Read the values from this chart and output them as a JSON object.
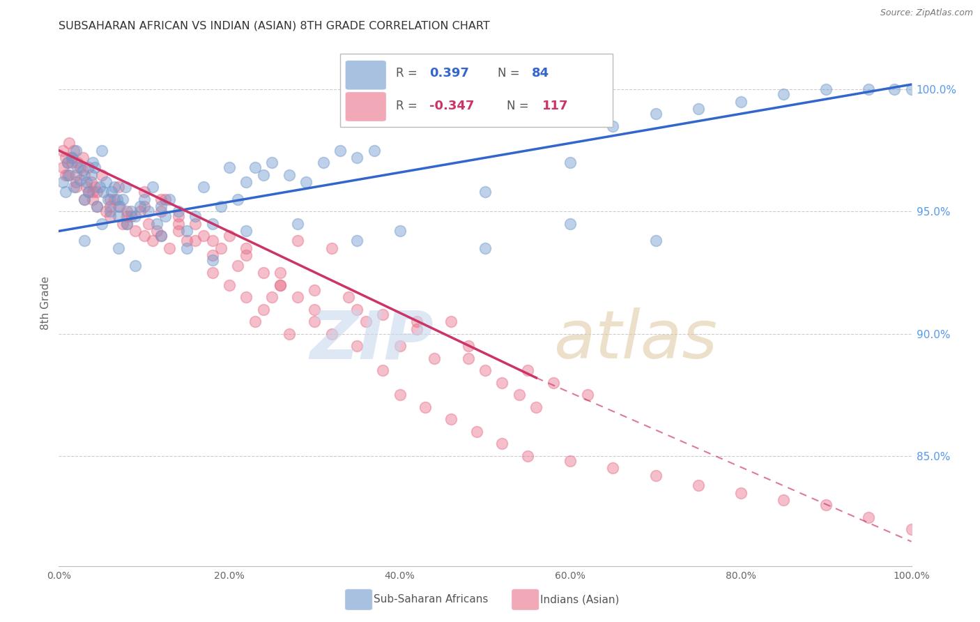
{
  "title": "SUBSAHARAN AFRICAN VS INDIAN (ASIAN) 8TH GRADE CORRELATION CHART",
  "source": "Source: ZipAtlas.com",
  "ylabel": "8th Grade",
  "legend_blue_r_val": "0.397",
  "legend_blue_n_val": "84",
  "legend_pink_r_val": "-0.347",
  "legend_pink_n_val": "117",
  "legend_label_blue": "Sub-Saharan Africans",
  "legend_label_pink": "Indians (Asian)",
  "right_yticks": [
    85.0,
    90.0,
    95.0,
    100.0
  ],
  "blue_color": "#7099CC",
  "pink_color": "#E8708A",
  "blue_line_color": "#3366CC",
  "pink_line_color": "#CC3366",
  "blue_scatter_x": [
    0.5,
    0.8,
    1.0,
    1.2,
    1.5,
    1.8,
    2.0,
    2.2,
    2.5,
    2.8,
    3.0,
    3.2,
    3.5,
    3.8,
    4.0,
    4.2,
    4.5,
    4.8,
    5.0,
    5.2,
    5.5,
    5.8,
    6.0,
    6.2,
    6.5,
    6.8,
    7.0,
    7.2,
    7.5,
    7.8,
    8.0,
    8.5,
    9.0,
    9.5,
    10.0,
    10.5,
    11.0,
    11.5,
    12.0,
    12.5,
    13.0,
    14.0,
    15.0,
    16.0,
    17.0,
    18.0,
    19.0,
    20.0,
    21.0,
    22.0,
    23.0,
    24.0,
    25.0,
    27.0,
    29.0,
    31.0,
    33.0,
    35.0,
    37.0,
    50.0,
    60.0,
    65.0,
    70.0,
    75.0,
    80.0,
    85.0,
    90.0,
    95.0,
    98.0,
    100.0,
    3.0,
    5.0,
    7.0,
    9.0,
    12.0,
    15.0,
    18.0,
    22.0,
    28.0,
    35.0,
    40.0,
    50.0,
    60.0,
    70.0
  ],
  "blue_scatter_y": [
    96.2,
    95.8,
    97.0,
    96.5,
    97.2,
    96.0,
    97.5,
    96.8,
    96.3,
    96.7,
    95.5,
    96.2,
    95.8,
    96.5,
    97.0,
    96.8,
    95.2,
    96.0,
    97.5,
    95.8,
    96.2,
    95.5,
    95.0,
    95.8,
    96.0,
    95.5,
    94.8,
    95.2,
    95.5,
    96.0,
    94.5,
    95.0,
    94.8,
    95.2,
    95.5,
    95.0,
    96.0,
    94.5,
    95.2,
    94.8,
    95.5,
    95.0,
    94.2,
    94.8,
    96.0,
    94.5,
    95.2,
    96.8,
    95.5,
    96.2,
    96.8,
    96.5,
    97.0,
    96.5,
    96.2,
    97.0,
    97.5,
    97.2,
    97.5,
    95.8,
    97.0,
    98.5,
    99.0,
    99.2,
    99.5,
    99.8,
    100.0,
    100.0,
    100.0,
    100.0,
    93.8,
    94.5,
    93.5,
    92.8,
    94.0,
    93.5,
    93.0,
    94.2,
    94.5,
    93.8,
    94.2,
    93.5,
    94.5,
    93.8
  ],
  "pink_scatter_x": [
    0.5,
    0.8,
    1.0,
    1.2,
    1.5,
    1.8,
    2.0,
    2.2,
    2.5,
    2.8,
    3.0,
    3.2,
    3.5,
    3.8,
    4.0,
    4.2,
    4.5,
    5.0,
    5.5,
    6.0,
    6.5,
    7.0,
    7.5,
    8.0,
    8.5,
    9.0,
    9.5,
    10.0,
    10.5,
    11.0,
    11.5,
    12.0,
    12.5,
    13.0,
    14.0,
    15.0,
    16.0,
    17.0,
    18.0,
    19.0,
    20.0,
    21.0,
    22.0,
    23.0,
    24.0,
    25.0,
    26.0,
    27.0,
    28.0,
    30.0,
    32.0,
    34.0,
    36.0,
    38.0,
    40.0,
    42.0,
    44.0,
    46.0,
    48.0,
    50.0,
    52.0,
    54.0,
    56.0,
    58.0,
    0.5,
    1.0,
    2.0,
    3.0,
    4.5,
    6.0,
    8.0,
    10.0,
    12.0,
    14.0,
    16.0,
    18.0,
    20.0,
    22.0,
    24.0,
    26.0,
    28.0,
    30.0,
    32.0,
    35.0,
    38.0,
    40.0,
    43.0,
    46.0,
    49.0,
    52.0,
    55.0,
    60.0,
    65.0,
    70.0,
    75.0,
    80.0,
    85.0,
    90.0,
    95.0,
    100.0,
    0.8,
    2.0,
    4.0,
    6.0,
    8.0,
    10.0,
    14.0,
    18.0,
    22.0,
    26.0,
    30.0,
    35.0,
    42.0,
    48.0,
    55.0,
    62.0,
    1.5,
    3.5,
    7.0,
    12.0
  ],
  "pink_scatter_y": [
    97.5,
    97.2,
    97.0,
    97.8,
    97.2,
    97.5,
    96.5,
    97.0,
    96.8,
    97.2,
    96.5,
    96.0,
    95.8,
    96.2,
    95.5,
    96.0,
    95.2,
    96.5,
    95.0,
    94.8,
    95.5,
    95.2,
    94.5,
    95.0,
    94.8,
    94.2,
    95.0,
    94.0,
    94.5,
    93.8,
    94.2,
    94.0,
    95.5,
    93.5,
    94.8,
    93.8,
    94.5,
    94.0,
    92.5,
    93.5,
    94.0,
    92.8,
    93.5,
    90.5,
    92.5,
    91.5,
    92.0,
    90.0,
    93.8,
    91.0,
    93.5,
    91.5,
    90.5,
    90.8,
    89.5,
    90.5,
    89.0,
    90.5,
    89.0,
    88.5,
    88.0,
    87.5,
    87.0,
    88.0,
    96.8,
    96.5,
    96.0,
    95.5,
    95.8,
    95.2,
    94.5,
    95.8,
    95.0,
    94.2,
    93.8,
    93.2,
    92.0,
    91.5,
    91.0,
    92.0,
    91.5,
    90.5,
    90.0,
    89.5,
    88.5,
    87.5,
    87.0,
    86.5,
    86.0,
    85.5,
    85.0,
    84.8,
    84.5,
    84.2,
    83.8,
    83.5,
    83.2,
    83.0,
    82.5,
    82.0,
    96.5,
    96.2,
    95.8,
    95.5,
    94.8,
    95.2,
    94.5,
    93.8,
    93.2,
    92.5,
    91.8,
    91.0,
    90.2,
    89.5,
    88.5,
    87.5,
    97.0,
    96.8,
    96.0,
    95.5
  ],
  "blue_line_x0": 0.0,
  "blue_line_x1": 100.0,
  "blue_line_y0": 94.2,
  "blue_line_y1": 100.2,
  "pink_line_x0": 0.0,
  "pink_line_x1": 56.0,
  "pink_line_y0": 97.5,
  "pink_line_y1": 88.2,
  "pink_dash_x0": 56.0,
  "pink_dash_x1": 100.0,
  "pink_dash_y0": 88.2,
  "pink_dash_y1": 81.5,
  "ymin": 80.5,
  "ymax": 102.0,
  "xmin": 0.0,
  "xmax": 100.0
}
